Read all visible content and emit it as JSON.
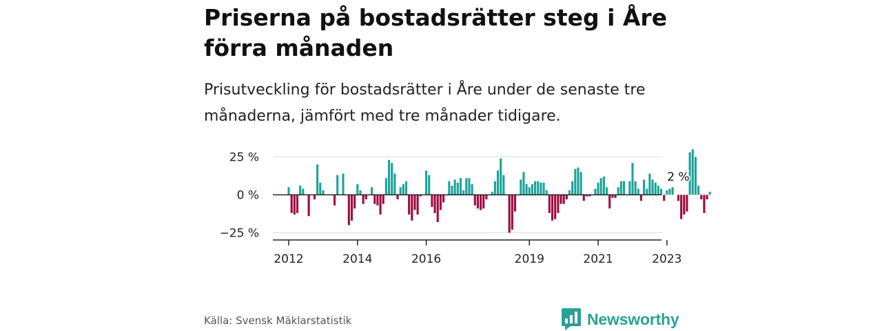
{
  "header": {
    "title": "Priserna på bostadsrätter steg i Åre förra månaden",
    "subtitle": "Prisutveckling för bostadsrätter i Åre under de senaste tre månaderna, jämfört med tre månader tidigare."
  },
  "footer": {
    "source": "Källa: Svensk Mäklarstatistik",
    "logo_text": "Newsworthy"
  },
  "colors": {
    "positive": "#1aa39a",
    "negative": "#a0083c",
    "gridline": "#dddddd",
    "zeroline": "#222222",
    "logo": "#2aa198"
  },
  "chart_data": {
    "type": "bar",
    "title": "Priserna på bostadsrätter steg i Åre förra månaden",
    "subtitle": "Prisutveckling för bostadsrätter i Åre under de senaste tre månaderna, jämfört med tre månader tidigare.",
    "xlabel": "",
    "ylabel": "",
    "ylim": [
      -30,
      32
    ],
    "yticks": [
      25,
      0,
      -25
    ],
    "ytick_labels": [
      "25 %",
      "0 %",
      "−25 %"
    ],
    "xticks": [
      "2012",
      "2014",
      "2016",
      "2019",
      "2021",
      "2023"
    ],
    "grid": true,
    "start": "2012-01",
    "unit": "%",
    "annotation": {
      "label": "2 %",
      "date": "2023-05",
      "value": 2
    },
    "series": [
      {
        "values": [
          5,
          -12,
          -13,
          -12,
          6,
          4,
          0,
          -14,
          0,
          -3,
          20,
          8,
          3,
          0,
          0,
          0,
          -7,
          13,
          0,
          14,
          0,
          -20,
          -17,
          -9,
          7,
          3,
          -6,
          -3,
          0,
          5,
          -6,
          -7,
          -13,
          -6,
          11,
          23,
          21,
          14,
          -3,
          5,
          7,
          9,
          -13,
          -17,
          -10,
          -13,
          -1,
          0,
          16,
          13,
          -8,
          -12,
          -18,
          -10,
          -5,
          0,
          9,
          6,
          10,
          8,
          11,
          3,
          11,
          11,
          7,
          -7,
          -9,
          -10,
          -9,
          -3,
          0,
          2,
          9,
          16,
          24,
          13,
          0,
          -25,
          -23,
          -11,
          0,
          10,
          15,
          7,
          5,
          7,
          9,
          9,
          8,
          8,
          3,
          -12,
          -17,
          -16,
          -12,
          -6,
          -6,
          -3,
          3,
          9,
          17,
          18,
          15,
          -4,
          -1,
          -1,
          0,
          4,
          8,
          11,
          12,
          5,
          -9,
          -2,
          -2,
          5,
          9,
          9,
          0,
          9,
          21,
          9,
          4,
          -4,
          10,
          4,
          14,
          10,
          8,
          6,
          4,
          -4,
          3,
          4,
          5,
          0,
          -4,
          -16,
          -13,
          -11,
          28,
          30,
          25,
          6,
          -3,
          -12,
          -3,
          2
        ]
      }
    ]
  }
}
